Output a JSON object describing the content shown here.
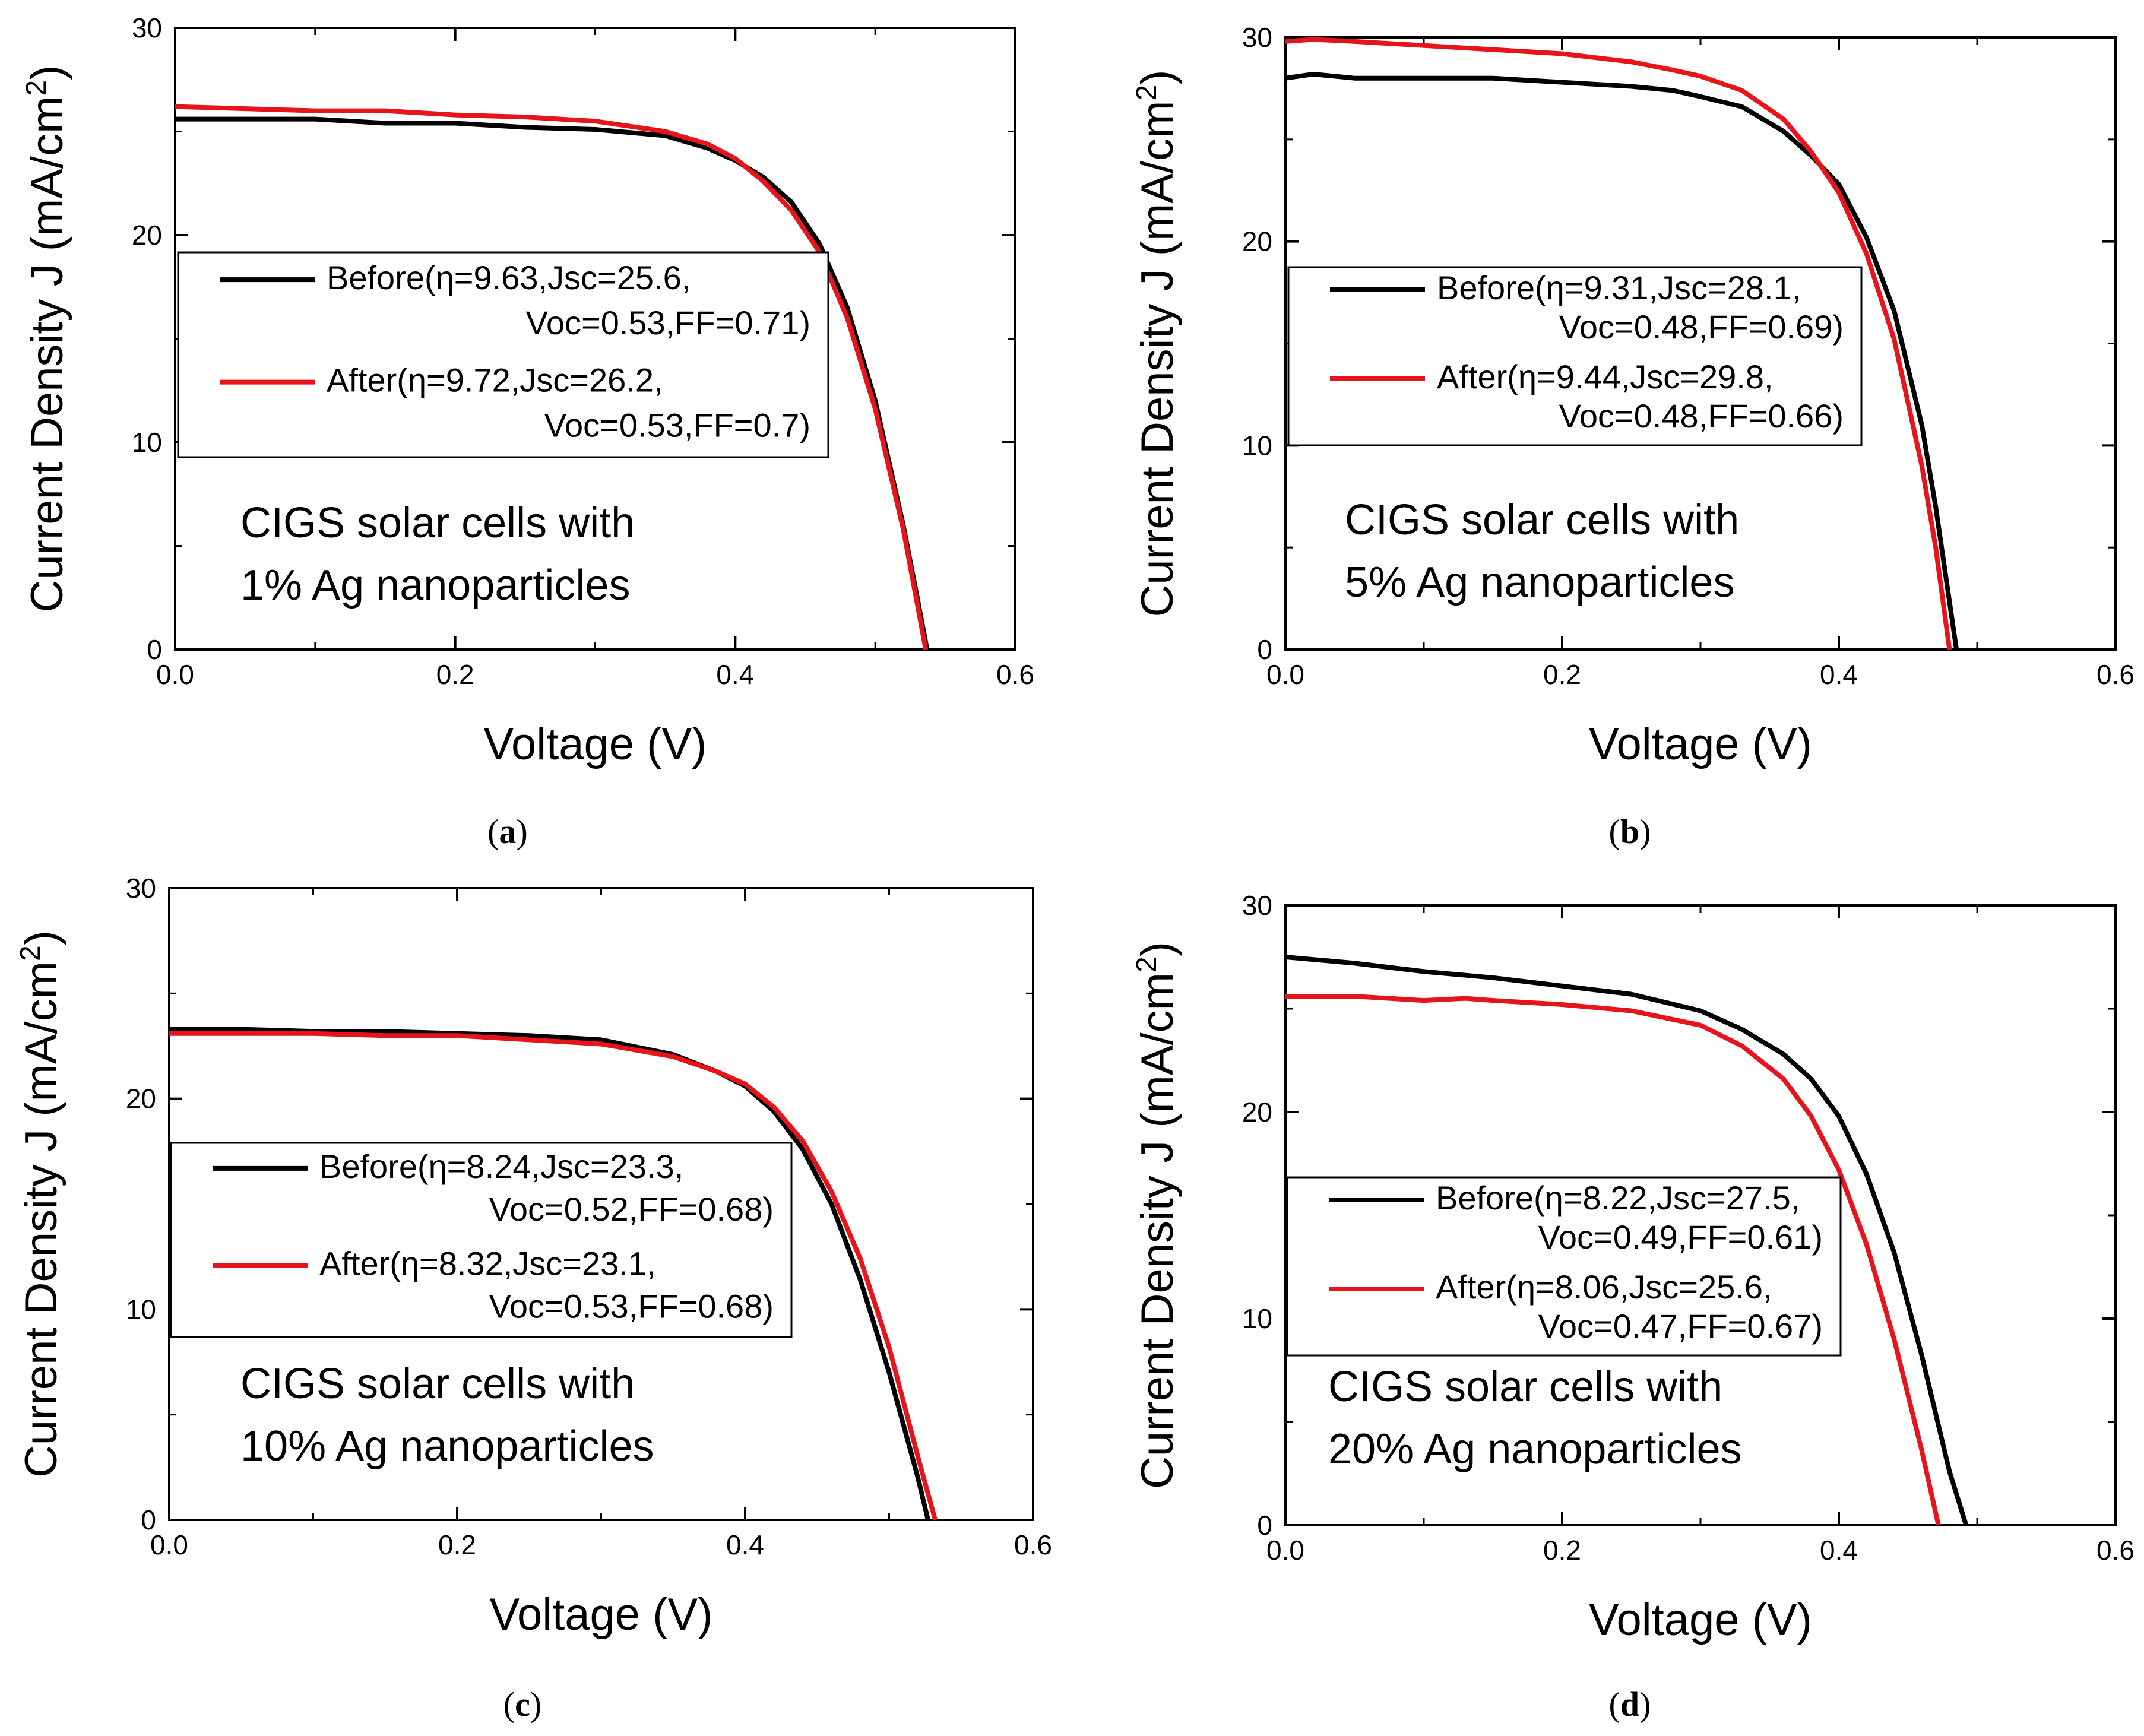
{
  "figure": {
    "panels": [
      {
        "caption_letter": "a",
        "annotation": [
          "CIGS solar cells with",
          "1% Ag nanoparticles"
        ],
        "legend": [
          {
            "label_l1": "Before(η=9.63,Jsc=25.6,",
            "label_l2": "Voc=0.53,FF=0.71)"
          },
          {
            "label_l1": "After(η=9.72,Jsc=26.2,",
            "label_l2": "Voc=0.53,FF=0.7)"
          }
        ]
      },
      {
        "caption_letter": "b",
        "annotation": [
          "CIGS solar cells with",
          "5% Ag nanoparticles"
        ],
        "legend": [
          {
            "label_l1": "Before(η=9.31,Jsc=28.1,",
            "label_l2": "Voc=0.48,FF=0.69)"
          },
          {
            "label_l1": "After(η=9.44,Jsc=29.8,",
            "label_l2": "Voc=0.48,FF=0.66)"
          }
        ]
      },
      {
        "caption_letter": "c",
        "annotation": [
          "CIGS solar cells with",
          "10% Ag nanoparticles"
        ],
        "legend": [
          {
            "label_l1": "Before(η=8.24,Jsc=23.3,",
            "label_l2": "Voc=0.52,FF=0.68)"
          },
          {
            "label_l1": "After(η=8.32,Jsc=23.1,",
            "label_l2": "Voc=0.53,FF=0.68)"
          }
        ]
      },
      {
        "caption_letter": "d",
        "annotation": [
          "CIGS solar cells with",
          "20% Ag nanoparticles"
        ],
        "legend": [
          {
            "label_l1": "Before(η=8.22,Jsc=27.5,",
            "label_l2": "Voc=0.49,FF=0.61)"
          },
          {
            "label_l1": "After(η=8.06,Jsc=25.6,",
            "label_l2": "Voc=0.47,FF=0.67)"
          }
        ]
      }
    ]
  },
  "chart_data": [
    {
      "type": "line",
      "panel": "a",
      "xlabel": "Voltage (V)",
      "ylabel_main": "Current Density J (mA/cm",
      "ylabel_sup": "2",
      "ylabel_close": ")",
      "xlim": [
        0.0,
        0.6
      ],
      "ylim": [
        0,
        30
      ],
      "xticks": [
        0.0,
        0.2,
        0.4,
        0.6
      ],
      "xtick_labels": [
        "0.0",
        "0.2",
        "0.4",
        "0.6"
      ],
      "yticks": [
        0,
        10,
        20,
        30
      ],
      "ytick_labels": [
        "0",
        "10",
        "20",
        "30"
      ],
      "grid": false,
      "legend_position": "center-left",
      "series": [
        {
          "name": "Before",
          "color": "#000000",
          "x": [
            0.0,
            0.05,
            0.1,
            0.15,
            0.2,
            0.25,
            0.3,
            0.35,
            0.38,
            0.4,
            0.42,
            0.44,
            0.46,
            0.48,
            0.5,
            0.52,
            0.53,
            0.537
          ],
          "y": [
            25.6,
            25.6,
            25.6,
            25.4,
            25.4,
            25.2,
            25.1,
            24.8,
            24.2,
            23.6,
            22.8,
            21.6,
            19.6,
            16.5,
            12.0,
            6.0,
            2.5,
            0.0
          ]
        },
        {
          "name": "After",
          "color": "#e8141c",
          "x": [
            0.0,
            0.05,
            0.1,
            0.15,
            0.2,
            0.25,
            0.3,
            0.35,
            0.38,
            0.4,
            0.42,
            0.44,
            0.46,
            0.48,
            0.5,
            0.52,
            0.53,
            0.536
          ],
          "y": [
            26.2,
            26.1,
            26.0,
            26.0,
            25.8,
            25.7,
            25.5,
            25.0,
            24.4,
            23.7,
            22.6,
            21.2,
            19.2,
            16.0,
            11.6,
            5.8,
            2.2,
            0.0
          ]
        }
      ]
    },
    {
      "type": "line",
      "panel": "b",
      "xlabel": "Voltage (V)",
      "ylabel_main": "Current Density J (mA/cm",
      "ylabel_sup": "2",
      "ylabel_close": ")",
      "xlim": [
        0.0,
        0.6
      ],
      "ylim": [
        0,
        30
      ],
      "xticks": [
        0.0,
        0.2,
        0.4,
        0.6
      ],
      "xtick_labels": [
        "0.0",
        "0.2",
        "0.4",
        "0.6"
      ],
      "yticks": [
        0,
        10,
        20,
        30
      ],
      "ytick_labels": [
        "0",
        "10",
        "20",
        "30"
      ],
      "grid": false,
      "legend_position": "center-left",
      "series": [
        {
          "name": "Before",
          "color": "#000000",
          "x": [
            0.0,
            0.02,
            0.05,
            0.1,
            0.15,
            0.2,
            0.25,
            0.28,
            0.3,
            0.33,
            0.36,
            0.38,
            0.4,
            0.42,
            0.44,
            0.46,
            0.47,
            0.485
          ],
          "y": [
            28.0,
            28.2,
            28.0,
            28.0,
            28.0,
            27.8,
            27.6,
            27.4,
            27.1,
            26.6,
            25.4,
            24.2,
            22.8,
            20.2,
            16.6,
            11.0,
            7.0,
            0.0
          ]
        },
        {
          "name": "After",
          "color": "#e8141c",
          "x": [
            0.0,
            0.02,
            0.05,
            0.1,
            0.15,
            0.2,
            0.25,
            0.28,
            0.3,
            0.33,
            0.36,
            0.38,
            0.4,
            0.42,
            0.44,
            0.46,
            0.47,
            0.48
          ],
          "y": [
            29.8,
            29.9,
            29.8,
            29.6,
            29.4,
            29.2,
            28.8,
            28.4,
            28.1,
            27.4,
            26.0,
            24.4,
            22.4,
            19.4,
            15.2,
            9.0,
            5.0,
            0.0
          ]
        }
      ]
    },
    {
      "type": "line",
      "panel": "c",
      "xlabel": "Voltage (V)",
      "ylabel_main": "Current Density J (mA/cm",
      "ylabel_sup": "2",
      "ylabel_close": ")",
      "xlim": [
        0.0,
        0.6
      ],
      "ylim": [
        0,
        30
      ],
      "xticks": [
        0.0,
        0.2,
        0.4,
        0.6
      ],
      "xtick_labels": [
        "0.0",
        "0.2",
        "0.4",
        "0.6"
      ],
      "yticks": [
        0,
        10,
        20,
        30
      ],
      "ytick_labels": [
        "0",
        "10",
        "20",
        "30"
      ],
      "grid": false,
      "legend_position": "center-left",
      "series": [
        {
          "name": "Before",
          "color": "#000000",
          "x": [
            0.0,
            0.05,
            0.1,
            0.15,
            0.2,
            0.25,
            0.3,
            0.35,
            0.38,
            0.4,
            0.42,
            0.44,
            0.46,
            0.48,
            0.5,
            0.52,
            0.527
          ],
          "y": [
            23.3,
            23.3,
            23.2,
            23.2,
            23.1,
            23.0,
            22.8,
            22.1,
            21.3,
            20.6,
            19.4,
            17.6,
            15.0,
            11.4,
            7.0,
            2.0,
            0.0
          ]
        },
        {
          "name": "After",
          "color": "#e8141c",
          "x": [
            0.0,
            0.05,
            0.1,
            0.15,
            0.2,
            0.25,
            0.3,
            0.35,
            0.38,
            0.4,
            0.42,
            0.44,
            0.46,
            0.48,
            0.5,
            0.52,
            0.532
          ],
          "y": [
            23.1,
            23.1,
            23.1,
            23.0,
            23.0,
            22.8,
            22.6,
            22.0,
            21.3,
            20.7,
            19.6,
            18.0,
            15.6,
            12.4,
            8.2,
            3.0,
            0.0
          ]
        }
      ]
    },
    {
      "type": "line",
      "panel": "d",
      "xlabel": "Voltage (V)",
      "ylabel_main": "Current Density J (mA/cm",
      "ylabel_sup": "2",
      "ylabel_close": ")",
      "xlim": [
        0.0,
        0.6
      ],
      "ylim": [
        0,
        30
      ],
      "xticks": [
        0.0,
        0.2,
        0.4,
        0.6
      ],
      "xtick_labels": [
        "0.0",
        "0.2",
        "0.4",
        "0.6"
      ],
      "yticks": [
        0,
        10,
        20,
        30
      ],
      "ytick_labels": [
        "0",
        "10",
        "20",
        "30"
      ],
      "grid": false,
      "legend_position": "center-left",
      "series": [
        {
          "name": "Before",
          "color": "#000000",
          "x": [
            0.0,
            0.05,
            0.1,
            0.15,
            0.2,
            0.25,
            0.3,
            0.33,
            0.36,
            0.38,
            0.4,
            0.42,
            0.44,
            0.46,
            0.48,
            0.492
          ],
          "y": [
            27.5,
            27.2,
            26.8,
            26.5,
            26.1,
            25.7,
            24.9,
            24.0,
            22.8,
            21.6,
            19.8,
            17.0,
            13.2,
            8.2,
            2.6,
            0.0
          ]
        },
        {
          "name": "After",
          "color": "#e8141c",
          "x": [
            0.0,
            0.05,
            0.1,
            0.13,
            0.15,
            0.2,
            0.25,
            0.3,
            0.33,
            0.36,
            0.38,
            0.4,
            0.42,
            0.44,
            0.46,
            0.472
          ],
          "y": [
            25.6,
            25.6,
            25.4,
            25.5,
            25.4,
            25.2,
            24.9,
            24.2,
            23.2,
            21.6,
            19.8,
            17.2,
            13.6,
            9.0,
            3.6,
            0.0
          ]
        }
      ]
    }
  ]
}
